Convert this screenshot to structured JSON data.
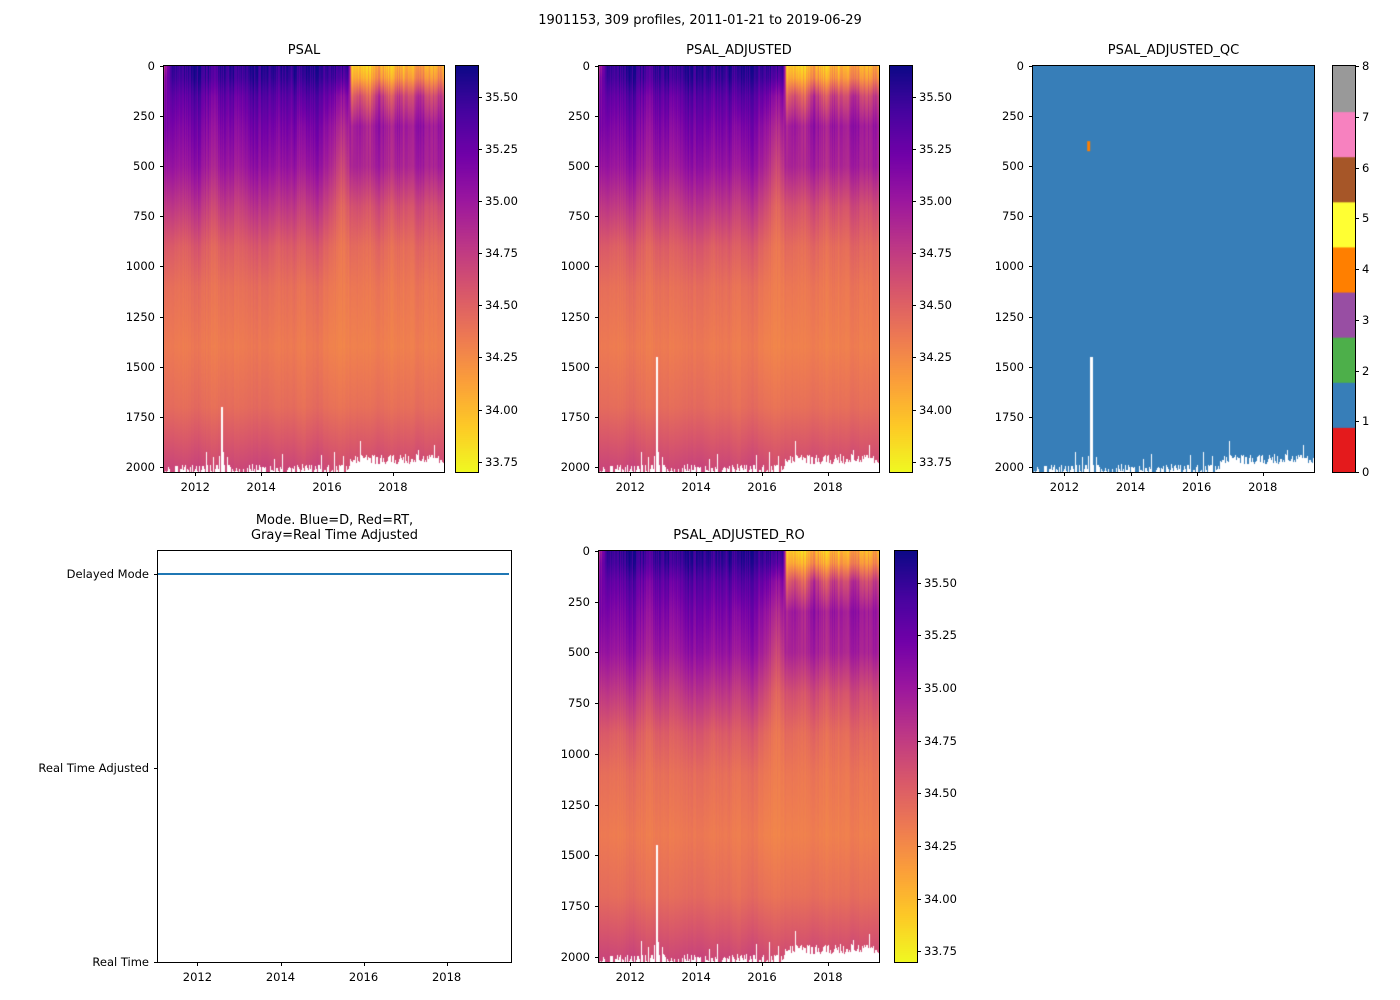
{
  "figure": {
    "title": "1901153, 309 profiles, 2011-01-21 to 2019-06-29",
    "background": "#ffffff"
  },
  "palette": {
    "plasma": [
      "#0d0887",
      "#46039f",
      "#7201a8",
      "#9c179e",
      "#bd3786",
      "#d8576b",
      "#ed7953",
      "#fb9f3a",
      "#fdca26",
      "#f0f921"
    ],
    "qc_colors": [
      "#e41a1c",
      "#377eb8",
      "#4daf4a",
      "#984ea3",
      "#ff7f00",
      "#ffff33",
      "#a65628",
      "#f781bf",
      "#999999"
    ],
    "mode_line_blue": "#1f77b4",
    "axis": "#000000",
    "no_data": "#ffffff"
  },
  "grids": {
    "psal": {
      "depths": [
        0,
        60,
        150,
        300,
        500,
        700,
        900,
        1100,
        1400,
        1700,
        2000
      ],
      "times": [
        2011.05,
        2011.3,
        2011.7,
        2012.1,
        2012.5,
        2012.9,
        2013.3,
        2013.7,
        2014.1,
        2014.5,
        2014.9,
        2015.3,
        2015.7,
        2016.1,
        2016.45,
        2016.65,
        2016.75,
        2017.0,
        2017.3,
        2017.6,
        2017.9,
        2018.2,
        2018.5,
        2018.8,
        2019.1,
        2019.5
      ],
      "values": [
        [
          34.8,
          35.55,
          35.5,
          35.6,
          35.45,
          35.55,
          35.5,
          35.55,
          35.6,
          35.5,
          35.55,
          35.5,
          35.6,
          35.5,
          35.45,
          35.5,
          33.9,
          34.0,
          33.85,
          34.15,
          33.9,
          34.1,
          33.95,
          34.2,
          34.0,
          34.1
        ],
        [
          35.0,
          35.5,
          35.45,
          35.55,
          35.4,
          35.5,
          35.45,
          35.5,
          35.55,
          35.45,
          35.5,
          35.45,
          35.55,
          35.45,
          35.35,
          35.4,
          34.05,
          34.15,
          34.0,
          34.3,
          34.05,
          34.25,
          34.1,
          34.35,
          34.15,
          34.25
        ],
        [
          35.1,
          35.35,
          35.3,
          35.4,
          35.2,
          35.35,
          35.25,
          35.35,
          35.4,
          35.3,
          35.35,
          35.3,
          35.4,
          35.25,
          35.05,
          35.15,
          34.45,
          34.7,
          34.4,
          34.9,
          34.5,
          34.8,
          34.55,
          34.9,
          34.6,
          34.75
        ],
        [
          35.15,
          35.2,
          35.15,
          35.25,
          35.05,
          35.2,
          35.1,
          35.2,
          35.25,
          35.15,
          35.2,
          35.1,
          35.25,
          35.05,
          34.85,
          34.95,
          34.9,
          35.05,
          34.85,
          35.1,
          34.9,
          35.05,
          34.9,
          35.1,
          34.95,
          35.0
        ],
        [
          35.0,
          35.05,
          35.0,
          35.1,
          34.9,
          35.05,
          34.95,
          35.05,
          35.1,
          35.0,
          35.05,
          34.95,
          35.1,
          34.9,
          34.65,
          34.8,
          34.9,
          34.95,
          34.85,
          35.0,
          34.85,
          34.95,
          34.85,
          35.0,
          34.9,
          34.95
        ],
        [
          34.75,
          34.8,
          34.75,
          34.85,
          34.65,
          34.8,
          34.7,
          34.8,
          34.85,
          34.75,
          34.8,
          34.7,
          34.85,
          34.65,
          34.45,
          34.55,
          34.6,
          34.65,
          34.55,
          34.7,
          34.55,
          34.65,
          34.55,
          34.7,
          34.6,
          34.65
        ],
        [
          34.55,
          34.55,
          34.5,
          34.6,
          34.45,
          34.55,
          34.5,
          34.55,
          34.6,
          34.5,
          34.55,
          34.5,
          34.6,
          34.45,
          34.35,
          34.4,
          34.45,
          34.45,
          34.4,
          34.5,
          34.4,
          34.45,
          34.4,
          34.5,
          34.45,
          34.45
        ],
        [
          34.42,
          34.42,
          34.4,
          34.45,
          34.38,
          34.42,
          34.4,
          34.42,
          34.45,
          34.4,
          34.42,
          34.38,
          34.45,
          34.36,
          34.32,
          34.34,
          34.36,
          34.38,
          34.34,
          34.4,
          34.34,
          34.38,
          34.34,
          34.4,
          34.36,
          34.38
        ],
        [
          34.35,
          34.35,
          34.33,
          34.37,
          34.32,
          34.35,
          34.33,
          34.35,
          34.37,
          34.33,
          34.35,
          34.32,
          34.37,
          34.3,
          34.28,
          34.3,
          34.3,
          34.32,
          34.3,
          34.34,
          34.3,
          34.32,
          34.3,
          34.34,
          34.31,
          34.32
        ],
        [
          34.44,
          34.44,
          34.42,
          34.46,
          34.4,
          34.44,
          34.42,
          34.44,
          34.46,
          34.42,
          34.44,
          34.4,
          34.46,
          34.4,
          34.38,
          34.4,
          34.4,
          34.42,
          34.4,
          34.44,
          34.4,
          34.42,
          34.4,
          34.44,
          34.41,
          34.42
        ],
        [
          34.68,
          34.68,
          34.66,
          34.7,
          34.64,
          34.68,
          34.66,
          34.68,
          34.7,
          34.66,
          34.68,
          34.64,
          34.7,
          34.64,
          34.62,
          34.64,
          34.64,
          34.66,
          34.64,
          34.68,
          34.64,
          34.66,
          34.64,
          34.68,
          34.65,
          34.66
        ]
      ]
    }
  },
  "chart_data": [
    {
      "type": "heatmap",
      "name": "psal",
      "title": "PSAL",
      "x_range": [
        2011.05,
        2019.55
      ],
      "xticks": [
        "2012",
        "2014",
        "2016",
        "2018"
      ],
      "xtick_values": [
        2012,
        2014,
        2016,
        2018
      ],
      "y_range": [
        0,
        2025
      ],
      "yticks": [
        "0",
        "250",
        "500",
        "750",
        "1000",
        "1250",
        "1500",
        "1750",
        "2000"
      ],
      "ytick_values": [
        0,
        250,
        500,
        750,
        1000,
        1250,
        1500,
        1750,
        2000
      ],
      "colormap": "plasma_r",
      "vmin": 33.7,
      "vmax": 35.65,
      "colorbar_ticks": [
        "35.50",
        "35.25",
        "35.00",
        "34.75",
        "34.50",
        "34.25",
        "34.00",
        "33.75"
      ],
      "colorbar_tick_values": [
        35.5,
        35.25,
        35.0,
        34.75,
        34.5,
        34.25,
        34.0,
        33.75
      ],
      "colorbar_gap": 11,
      "grid": "psal",
      "transition_time": 2016.7,
      "gaps": [
        {
          "t": 2012.8,
          "d_from": 1700
        }
      ]
    },
    {
      "type": "heatmap",
      "name": "psal-adjusted",
      "title": "PSAL_ADJUSTED",
      "x_range": [
        2011.05,
        2019.55
      ],
      "xticks": [
        "2012",
        "2014",
        "2016",
        "2018"
      ],
      "xtick_values": [
        2012,
        2014,
        2016,
        2018
      ],
      "y_range": [
        0,
        2025
      ],
      "yticks": [
        "0",
        "250",
        "500",
        "750",
        "1000",
        "1250",
        "1500",
        "1750",
        "2000"
      ],
      "ytick_values": [
        0,
        250,
        500,
        750,
        1000,
        1250,
        1500,
        1750,
        2000
      ],
      "colormap": "plasma_r",
      "vmin": 33.7,
      "vmax": 35.65,
      "colorbar_ticks": [
        "35.50",
        "35.25",
        "35.00",
        "34.75",
        "34.50",
        "34.25",
        "34.00",
        "33.75"
      ],
      "colorbar_tick_values": [
        35.5,
        35.25,
        35.0,
        34.75,
        34.5,
        34.25,
        34.0,
        33.75
      ],
      "colorbar_gap": 10,
      "grid": "psal",
      "transition_time": 2016.7,
      "gaps": [
        {
          "t": 2012.8,
          "d_from": 1450
        }
      ]
    },
    {
      "type": "heatmap",
      "name": "psal-adjusted-qc",
      "title": "PSAL_ADJUSTED_QC",
      "x_range": [
        2011.05,
        2019.55
      ],
      "xticks": [
        "2012",
        "2014",
        "2016",
        "2018"
      ],
      "xtick_values": [
        2012,
        2014,
        2016,
        2018
      ],
      "y_range": [
        0,
        2025
      ],
      "yticks": [
        "0",
        "250",
        "500",
        "750",
        "1000",
        "1250",
        "1500",
        "1750",
        "2000"
      ],
      "ytick_values": [
        0,
        250,
        500,
        750,
        1000,
        1250,
        1500,
        1750,
        2000
      ],
      "qc": true,
      "uniform_value": 1,
      "colorbar_ticks": [
        "8",
        "7",
        "6",
        "5",
        "4",
        "3",
        "2",
        "1",
        "0"
      ],
      "colorbar_tick_values": [
        8,
        7,
        6,
        5,
        4,
        3,
        2,
        1,
        0
      ],
      "colorbar_gap": 18,
      "transition_time": 2016.7,
      "gaps": [
        {
          "t": 2012.8,
          "d_from": 1450
        }
      ],
      "anomalies": [
        {
          "t": 2012.72,
          "d": 400,
          "value": 4
        }
      ]
    },
    {
      "type": "line",
      "name": "mode",
      "title": "Mode. Blue=D, Red=RT,\nGray=Real Time Adjusted",
      "x_range": [
        2011.05,
        2019.55
      ],
      "xticks": [
        "2012",
        "2014",
        "2016",
        "2018"
      ],
      "xtick_values": [
        2012,
        2014,
        2016,
        2018
      ],
      "categories": [
        "Real Time",
        "Real Time Adjusted",
        "Delayed Mode"
      ],
      "category_values": [
        0,
        1,
        2
      ],
      "ylim": [
        0,
        2.12
      ],
      "series": [
        {
          "name": "mode-state",
          "category": "Delayed Mode",
          "category_value": 2,
          "x0": 2011.05,
          "x1": 2019.5,
          "color": "#1f77b4"
        }
      ]
    },
    {
      "type": "heatmap",
      "name": "psal-adjusted-ro",
      "title": "PSAL_ADJUSTED_RO",
      "x_range": [
        2011.05,
        2019.55
      ],
      "xticks": [
        "2012",
        "2014",
        "2016",
        "2018"
      ],
      "xtick_values": [
        2012,
        2014,
        2016,
        2018
      ],
      "y_range": [
        0,
        2025
      ],
      "yticks": [
        "0",
        "250",
        "500",
        "750",
        "1000",
        "1250",
        "1500",
        "1750",
        "2000"
      ],
      "ytick_values": [
        0,
        250,
        500,
        750,
        1000,
        1250,
        1500,
        1750,
        2000
      ],
      "colormap": "plasma_r",
      "vmin": 33.7,
      "vmax": 35.65,
      "colorbar_ticks": [
        "35.50",
        "35.25",
        "35.00",
        "34.75",
        "34.50",
        "34.25",
        "34.00",
        "33.75"
      ],
      "colorbar_tick_values": [
        35.5,
        35.25,
        35.0,
        34.75,
        34.5,
        34.25,
        34.0,
        33.75
      ],
      "colorbar_gap": 15,
      "grid": "psal",
      "transition_time": 2016.7,
      "gaps": [
        {
          "t": 2012.8,
          "d_from": 1450
        }
      ]
    }
  ]
}
